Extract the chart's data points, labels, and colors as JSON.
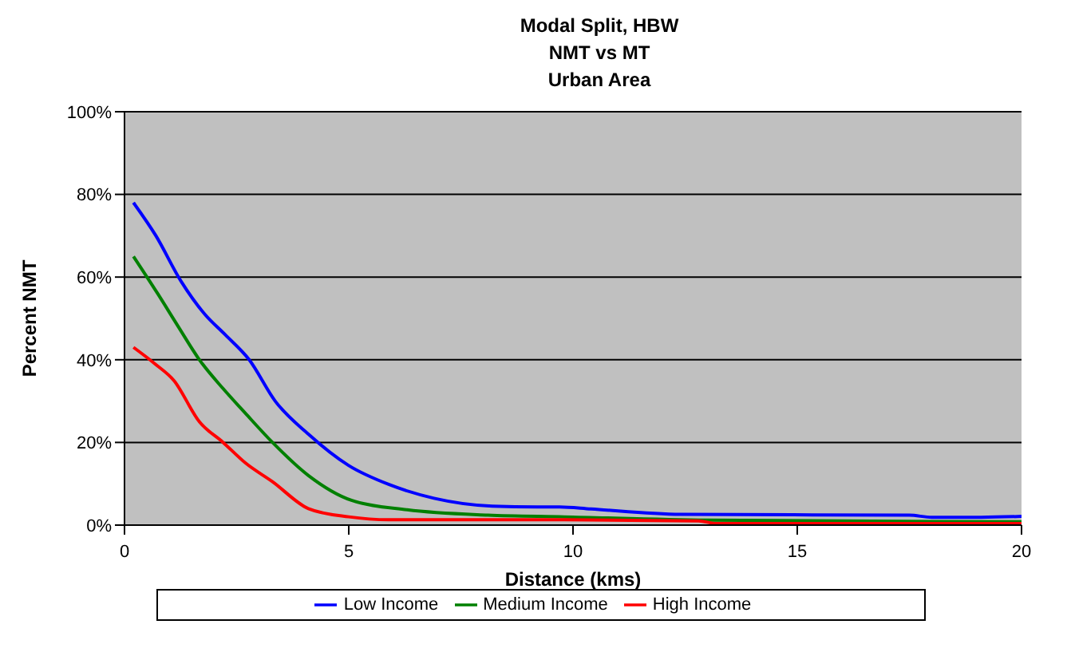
{
  "chart_data": {
    "type": "line",
    "title": "Modal Split, HBW\nNMT vs MT\nUrban Area",
    "xlabel": "Distance (kms)",
    "ylabel": "Percent NMT",
    "xlim": [
      0,
      20
    ],
    "xticks": [
      0,
      5,
      10,
      15,
      20
    ],
    "ylim": [
      0,
      100
    ],
    "yticks": [
      {
        "value": 0,
        "label": "0%"
      },
      {
        "value": 20,
        "label": "20%"
      },
      {
        "value": 40,
        "label": "40%"
      },
      {
        "value": 60,
        "label": "60%"
      },
      {
        "value": 80,
        "label": "80%"
      },
      {
        "value": 100,
        "label": "100%"
      }
    ],
    "grid": "y",
    "legend": "bottom",
    "marker": "none",
    "line_style": "solid",
    "series": [
      {
        "name": "Low  Income",
        "color": "#0000ff",
        "x": [
          0.2,
          0.7,
          1.26,
          1.79,
          2.25,
          2.78,
          3.36,
          4.1,
          5,
          5.9,
          6.9,
          8.2,
          9.2,
          9.7,
          10.4,
          12.4,
          17.5,
          18,
          19.1,
          20
        ],
        "values": [
          78,
          70,
          59,
          51,
          46,
          40,
          30,
          22,
          14.4,
          9.8,
          6.5,
          4.6,
          4.4,
          4.4,
          3.9,
          2.6,
          2.4,
          1.9,
          1.9,
          2.1
        ]
      },
      {
        "name": "Medium Income",
        "color": "#008000",
        "x": [
          0.2,
          0.74,
          1.2,
          1.67,
          2.2,
          2.7,
          3.3,
          4.1,
          5.06,
          6.3,
          8.1,
          9.8,
          13,
          20
        ],
        "values": [
          65,
          56,
          48,
          40,
          33,
          27,
          20,
          12,
          6,
          3.7,
          2.4,
          2,
          1.2,
          0.8
        ]
      },
      {
        "name": "High Income",
        "color": "#ff0000",
        "x": [
          0.2,
          0.68,
          1.1,
          1.67,
          2.2,
          2.7,
          3.3,
          4.1,
          5,
          5.9,
          9.8,
          12.8,
          13.2,
          20
        ],
        "values": [
          43,
          39,
          35,
          25,
          20,
          15,
          10.5,
          4,
          2,
          1.3,
          1.3,
          1,
          0.4,
          0.4
        ]
      }
    ]
  }
}
